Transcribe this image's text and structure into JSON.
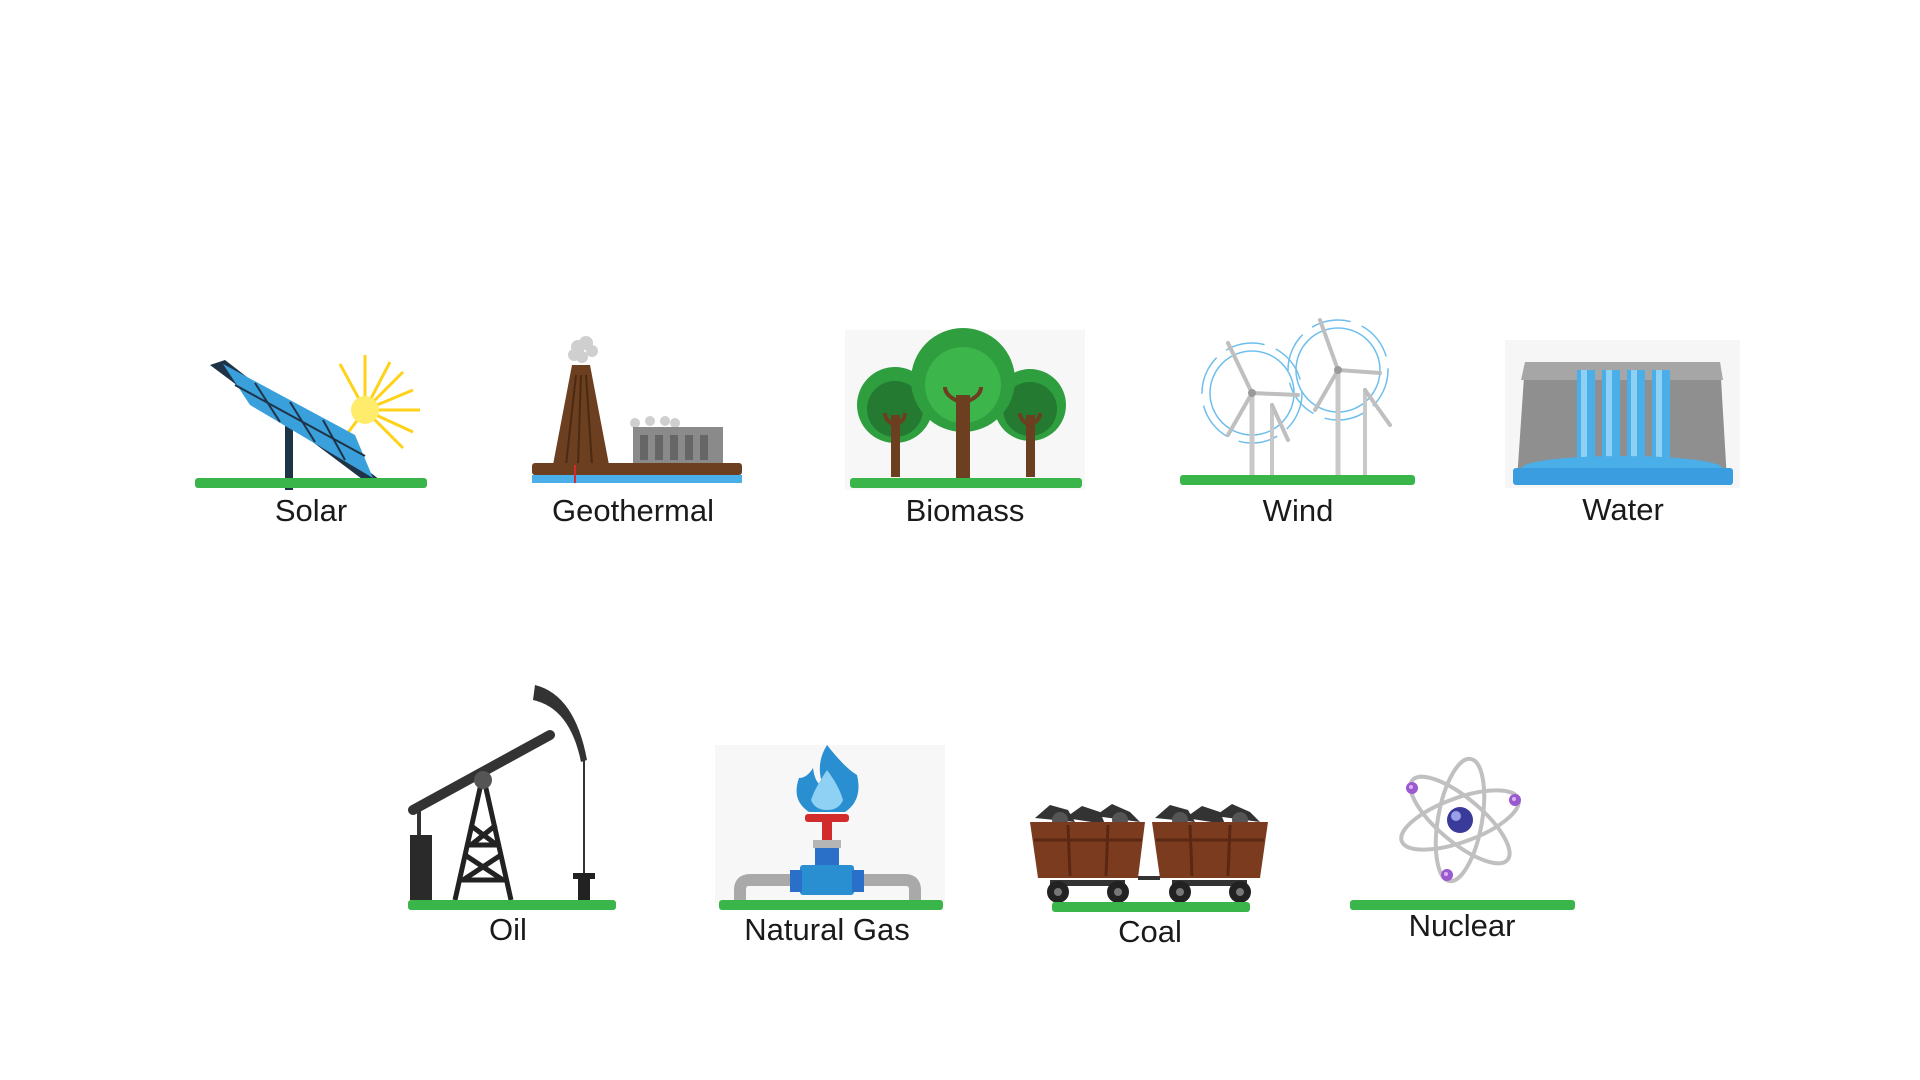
{
  "colors": {
    "ground": "#3ab54a",
    "label": "#1a1a1a",
    "solar_panel": "#3aa0dc",
    "sun": "#ffd21a",
    "earth_brown": "#6b3f1f",
    "tree_green": "#2f9e3f",
    "turbine": "#c8c8c8",
    "water_blue": "#4aaee8",
    "dam_gray": "#8f8f8f",
    "oil_pump": "#333333",
    "gas_flame": "#2a8fd0",
    "valve_red": "#d22b2b",
    "coal_cart": "#7b3b1f",
    "atom_purple": "#9b59d0"
  },
  "sources": [
    {
      "label": "Solar",
      "icon": "solar-panel-icon"
    },
    {
      "label": "Geothermal",
      "icon": "geothermal-plant-icon"
    },
    {
      "label": "Biomass",
      "icon": "trees-icon"
    },
    {
      "label": "Wind",
      "icon": "wind-turbines-icon"
    },
    {
      "label": "Water",
      "icon": "hydro-dam-icon"
    },
    {
      "label": "Oil",
      "icon": "oil-pumpjack-icon"
    },
    {
      "label": "Natural Gas",
      "icon": "gas-valve-flame-icon"
    },
    {
      "label": "Coal",
      "icon": "coal-carts-icon"
    },
    {
      "label": "Nuclear",
      "icon": "atom-icon"
    }
  ]
}
